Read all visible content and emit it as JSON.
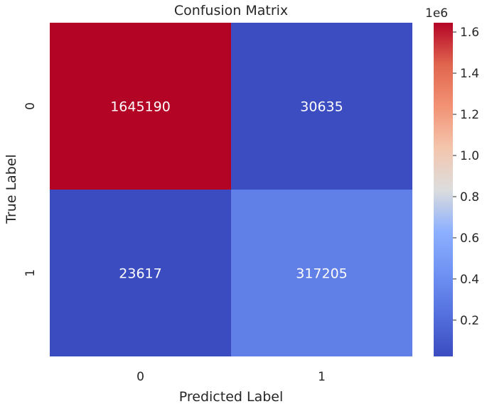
{
  "chart_data": {
    "type": "heatmap",
    "title": "Confusion Matrix",
    "xlabel": "Predicted Label",
    "ylabel": "True Label",
    "x_categories": [
      "0",
      "1"
    ],
    "y_categories": [
      "0",
      "1"
    ],
    "values": [
      [
        1645190,
        30635
      ],
      [
        23617,
        317205
      ]
    ],
    "colormap": "coolwarm",
    "colorbar": {
      "multiplier_label": "1e6",
      "ticks": [
        0.2,
        0.4,
        0.6,
        0.8,
        1.0,
        1.2,
        1.4,
        1.6
      ],
      "tick_labels": [
        "0.2",
        "0.4",
        "0.6",
        "0.8",
        "1.0",
        "1.2",
        "1.4",
        "1.6"
      ],
      "range": [
        23617,
        1645190
      ]
    }
  }
}
